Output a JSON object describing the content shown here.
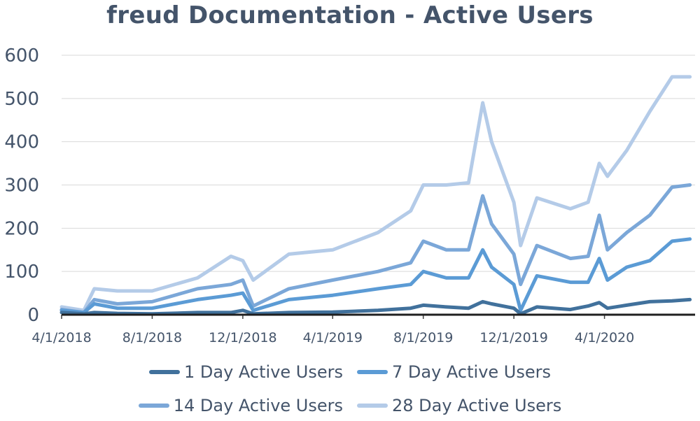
{
  "chart_data": {
    "type": "line",
    "title": "freud Documentation - Active Users",
    "xlabel": "",
    "ylabel": "",
    "ylim": [
      0,
      600
    ],
    "yticks": [
      "0",
      "100",
      "200",
      "300",
      "400",
      "500",
      "600"
    ],
    "xlim": [
      "2018-04-01",
      "2020-08-01"
    ],
    "xticks": [
      {
        "date": "2018-04-01",
        "label": "4/1/2018"
      },
      {
        "date": "2018-08-01",
        "label": "8/1/2018"
      },
      {
        "date": "2018-12-01",
        "label": "12/1/2018"
      },
      {
        "date": "2019-04-01",
        "label": "4/1/2019"
      },
      {
        "date": "2019-08-01",
        "label": "8/1/2019"
      },
      {
        "date": "2019-12-01",
        "label": "12/1/2019"
      },
      {
        "date": "2020-04-01",
        "label": "4/1/2020"
      }
    ],
    "grid": true,
    "legend_position": "bottom",
    "series": [
      {
        "name": "1 Day Active Users",
        "color": "#41719c",
        "points": [
          [
            "2018-04-01",
            5
          ],
          [
            "2018-05-01",
            2
          ],
          [
            "2018-05-15",
            5
          ],
          [
            "2018-06-15",
            3
          ],
          [
            "2018-08-01",
            2
          ],
          [
            "2018-10-01",
            5
          ],
          [
            "2018-11-15",
            5
          ],
          [
            "2018-12-01",
            10
          ],
          [
            "2018-12-15",
            2
          ],
          [
            "2019-02-01",
            5
          ],
          [
            "2019-04-01",
            6
          ],
          [
            "2019-06-01",
            10
          ],
          [
            "2019-07-15",
            15
          ],
          [
            "2019-08-01",
            22
          ],
          [
            "2019-09-01",
            18
          ],
          [
            "2019-10-01",
            15
          ],
          [
            "2019-10-20",
            30
          ],
          [
            "2019-11-01",
            25
          ],
          [
            "2019-12-01",
            15
          ],
          [
            "2019-12-10",
            2
          ],
          [
            "2020-01-01",
            18
          ],
          [
            "2020-02-15",
            12
          ],
          [
            "2020-03-10",
            20
          ],
          [
            "2020-03-25",
            28
          ],
          [
            "2020-04-05",
            15
          ],
          [
            "2020-05-01",
            22
          ],
          [
            "2020-06-01",
            30
          ],
          [
            "2020-07-01",
            32
          ],
          [
            "2020-07-25",
            35
          ]
        ]
      },
      {
        "name": "7 Day Active Users",
        "color": "#5b9bd5",
        "points": [
          [
            "2018-04-01",
            10
          ],
          [
            "2018-05-01",
            5
          ],
          [
            "2018-05-15",
            25
          ],
          [
            "2018-06-15",
            15
          ],
          [
            "2018-08-01",
            15
          ],
          [
            "2018-10-01",
            35
          ],
          [
            "2018-11-15",
            45
          ],
          [
            "2018-12-01",
            50
          ],
          [
            "2018-12-15",
            10
          ],
          [
            "2019-02-01",
            35
          ],
          [
            "2019-04-01",
            45
          ],
          [
            "2019-06-01",
            60
          ],
          [
            "2019-07-15",
            70
          ],
          [
            "2019-08-01",
            100
          ],
          [
            "2019-09-01",
            85
          ],
          [
            "2019-10-01",
            85
          ],
          [
            "2019-10-20",
            150
          ],
          [
            "2019-11-01",
            110
          ],
          [
            "2019-12-01",
            70
          ],
          [
            "2019-12-10",
            10
          ],
          [
            "2020-01-01",
            90
          ],
          [
            "2020-02-15",
            75
          ],
          [
            "2020-03-10",
            75
          ],
          [
            "2020-03-25",
            130
          ],
          [
            "2020-04-05",
            80
          ],
          [
            "2020-05-01",
            110
          ],
          [
            "2020-06-01",
            125
          ],
          [
            "2020-07-01",
            170
          ],
          [
            "2020-07-25",
            175
          ]
        ]
      },
      {
        "name": "14 Day Active Users",
        "color": "#7ba7d8",
        "points": [
          [
            "2018-04-01",
            12
          ],
          [
            "2018-05-01",
            5
          ],
          [
            "2018-05-15",
            35
          ],
          [
            "2018-06-15",
            25
          ],
          [
            "2018-08-01",
            30
          ],
          [
            "2018-10-01",
            60
          ],
          [
            "2018-11-15",
            70
          ],
          [
            "2018-12-01",
            80
          ],
          [
            "2018-12-15",
            20
          ],
          [
            "2019-02-01",
            60
          ],
          [
            "2019-04-01",
            80
          ],
          [
            "2019-06-01",
            100
          ],
          [
            "2019-07-15",
            120
          ],
          [
            "2019-08-01",
            170
          ],
          [
            "2019-09-01",
            150
          ],
          [
            "2019-10-01",
            150
          ],
          [
            "2019-10-20",
            275
          ],
          [
            "2019-11-01",
            210
          ],
          [
            "2019-12-01",
            140
          ],
          [
            "2019-12-10",
            70
          ],
          [
            "2020-01-01",
            160
          ],
          [
            "2020-02-15",
            130
          ],
          [
            "2020-03-10",
            135
          ],
          [
            "2020-03-25",
            230
          ],
          [
            "2020-04-05",
            150
          ],
          [
            "2020-05-01",
            190
          ],
          [
            "2020-06-01",
            230
          ],
          [
            "2020-07-01",
            295
          ],
          [
            "2020-07-25",
            300
          ]
        ]
      },
      {
        "name": "28 Day Active Users",
        "color": "#b4cbe8",
        "points": [
          [
            "2018-04-01",
            18
          ],
          [
            "2018-05-01",
            10
          ],
          [
            "2018-05-15",
            60
          ],
          [
            "2018-06-15",
            55
          ],
          [
            "2018-08-01",
            55
          ],
          [
            "2018-10-01",
            85
          ],
          [
            "2018-11-15",
            135
          ],
          [
            "2018-12-01",
            125
          ],
          [
            "2018-12-15",
            80
          ],
          [
            "2019-02-01",
            140
          ],
          [
            "2019-04-01",
            150
          ],
          [
            "2019-06-01",
            190
          ],
          [
            "2019-07-15",
            240
          ],
          [
            "2019-08-01",
            300
          ],
          [
            "2019-09-01",
            300
          ],
          [
            "2019-10-01",
            305
          ],
          [
            "2019-10-20",
            490
          ],
          [
            "2019-11-01",
            400
          ],
          [
            "2019-12-01",
            260
          ],
          [
            "2019-12-10",
            160
          ],
          [
            "2020-01-01",
            270
          ],
          [
            "2020-02-15",
            245
          ],
          [
            "2020-03-10",
            260
          ],
          [
            "2020-03-25",
            350
          ],
          [
            "2020-04-05",
            320
          ],
          [
            "2020-05-01",
            380
          ],
          [
            "2020-06-01",
            470
          ],
          [
            "2020-07-01",
            550
          ],
          [
            "2020-07-25",
            550
          ]
        ]
      }
    ]
  }
}
